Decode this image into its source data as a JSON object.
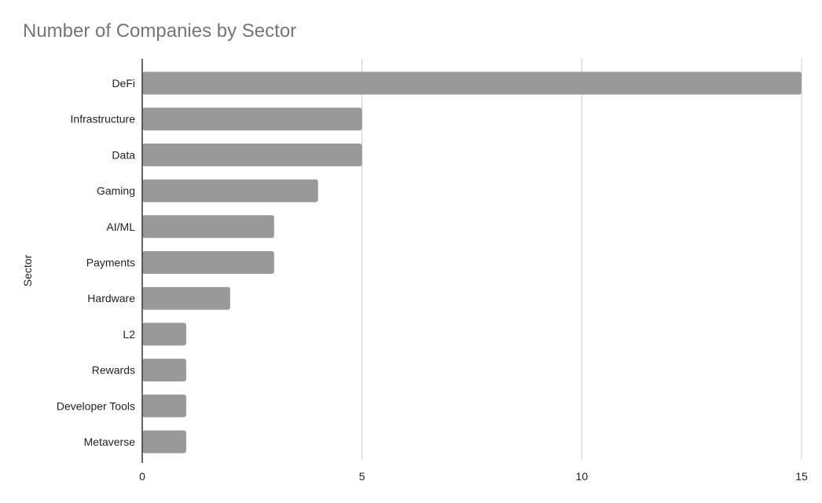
{
  "chart_data": {
    "type": "bar",
    "orientation": "horizontal",
    "title": "Number of Companies by Sector",
    "xlabel": "",
    "ylabel": "Sector",
    "categories": [
      "DeFi",
      "Infrastructure",
      "Data",
      "Gaming",
      "AI/ML",
      "Payments",
      "Hardware",
      "L2",
      "Rewards",
      "Developer Tools",
      "Metaverse"
    ],
    "values": [
      15,
      5,
      5,
      4,
      3,
      3,
      2,
      1,
      1,
      1,
      1
    ],
    "xlim": [
      0,
      15
    ],
    "xticks": [
      "0",
      "5",
      "10",
      "15"
    ],
    "grid": true,
    "legend": "none",
    "colors": {
      "bar": "#999999",
      "grid": "#cccccc",
      "axis": "#333333",
      "title": "#757575",
      "text": "#222222"
    }
  }
}
